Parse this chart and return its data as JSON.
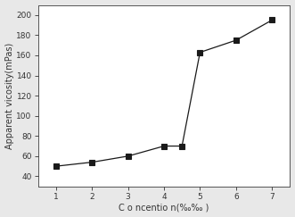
{
  "x": [
    1,
    2,
    3,
    4,
    4.5,
    5,
    6,
    7
  ],
  "y": [
    50,
    54,
    60,
    70,
    70,
    163,
    175,
    195
  ],
  "xlabel": "C o ncentio n(·‰‰ )",
  "ylabel": "Apparent vicosity(mPas)",
  "xlim": [
    0.5,
    7.5
  ],
  "ylim": [
    30,
    210
  ],
  "xticks": [
    1,
    2,
    3,
    4,
    5,
    6,
    7
  ],
  "yticks": [
    40,
    60,
    80,
    100,
    120,
    140,
    160,
    180,
    200
  ],
  "line_color": "#1a1a1a",
  "marker": "s",
  "marker_color": "#1a1a1a",
  "marker_size": 4,
  "line_style": "-",
  "line_width": 0.9,
  "background_color": "#ffffff",
  "fig_background_color": "#e8e8e8",
  "tick_fontsize": 6.5,
  "label_fontsize": 7
}
